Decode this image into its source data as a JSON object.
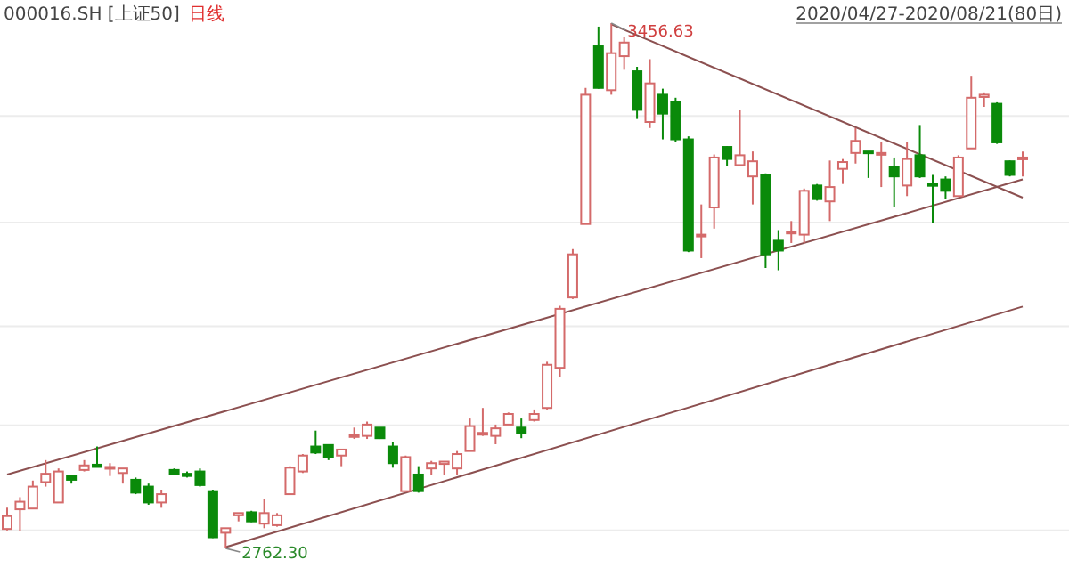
{
  "chart_data": {
    "type": "candlestick",
    "title": "000016.SH [上证50]",
    "subtitle": "日线",
    "annotations": [
      "2020/04/27-2020/08/21(80日)",
      "3456.63",
      "2762.30"
    ],
    "categories": [
      null,
      null,
      null,
      null,
      null,
      null,
      null,
      null,
      null,
      null,
      null,
      null,
      null,
      null,
      null,
      null,
      null,
      null,
      null,
      null,
      null,
      null,
      null,
      null,
      null,
      null,
      null,
      null,
      null,
      null,
      null,
      null,
      null,
      null,
      null,
      null,
      null,
      null,
      null,
      null,
      null,
      null,
      null,
      null,
      null,
      null,
      null,
      null,
      null,
      null,
      null,
      null,
      null,
      null,
      null,
      null,
      null,
      null,
      null,
      null,
      null,
      null,
      null,
      null,
      null,
      null,
      null,
      null,
      null,
      null,
      null,
      null,
      null,
      null,
      null,
      null,
      null,
      null,
      null,
      null
    ],
    "ohlc": [
      [
        2788,
        2816,
        2786,
        2805
      ],
      [
        2814,
        2830,
        2785,
        2824
      ],
      [
        2815,
        2852,
        2815,
        2844
      ],
      [
        2850,
        2879,
        2844,
        2861
      ],
      [
        2823,
        2868,
        2823,
        2864
      ],
      [
        2858,
        2860,
        2848,
        2853
      ],
      [
        2866,
        2879,
        2864,
        2872
      ],
      [
        2873,
        2897,
        2870,
        2870
      ],
      [
        2868,
        2875,
        2858,
        2870
      ],
      [
        2862,
        2868,
        2848,
        2868
      ],
      [
        2853,
        2856,
        2834,
        2836
      ],
      [
        2844,
        2848,
        2820,
        2823
      ],
      [
        2823,
        2840,
        2816,
        2834
      ],
      [
        2866,
        2868,
        2860,
        2861
      ],
      [
        2861,
        2864,
        2856,
        2858
      ],
      [
        2864,
        2868,
        2844,
        2846
      ],
      [
        2838,
        2840,
        2776,
        2777
      ],
      [
        2783,
        2789,
        2762.3,
        2789
      ],
      [
        2806,
        2809,
        2798,
        2809
      ],
      [
        2810,
        2812,
        2797,
        2798
      ],
      [
        2795,
        2828,
        2789,
        2809
      ],
      [
        2793,
        2809,
        2791,
        2806
      ],
      [
        2834,
        2871,
        2834,
        2869
      ],
      [
        2864,
        2887,
        2862,
        2885
      ],
      [
        2897,
        2918,
        2887,
        2889
      ],
      [
        2899,
        2899,
        2879,
        2883
      ],
      [
        2885,
        2893,
        2871,
        2893
      ],
      [
        2910,
        2922,
        2907,
        2912
      ],
      [
        2911,
        2930,
        2907,
        2926
      ],
      [
        2922,
        2922,
        2907,
        2908
      ],
      [
        2897,
        2903,
        2869,
        2875
      ],
      [
        2838,
        2885,
        2838,
        2883
      ],
      [
        2860,
        2871,
        2836,
        2838
      ],
      [
        2868,
        2878,
        2860,
        2875
      ],
      [
        2874,
        2877,
        2860,
        2877
      ],
      [
        2868,
        2891,
        2860,
        2887
      ],
      [
        2891,
        2934,
        2891,
        2924
      ],
      [
        2913,
        2948,
        2911,
        2915
      ],
      [
        2911,
        2926,
        2900,
        2921
      ],
      [
        2926,
        2942,
        2926,
        2940
      ],
      [
        2922,
        2934,
        2908,
        2915
      ],
      [
        2932,
        2946,
        2930,
        2940
      ],
      [
        2948,
        3009,
        2946,
        3005
      ],
      [
        3001,
        3083,
        2989,
        3079
      ],
      [
        3094,
        3158,
        3092,
        3151
      ],
      [
        3191,
        3371,
        3191,
        3362
      ],
      [
        3426,
        3452,
        3370,
        3371
      ],
      [
        3368,
        3456.63,
        3362,
        3417
      ],
      [
        3413,
        3439,
        3395,
        3431
      ],
      [
        3393,
        3399,
        3330,
        3342
      ],
      [
        3326,
        3409,
        3318,
        3377
      ],
      [
        3362,
        3370,
        3303,
        3337
      ],
      [
        3352,
        3358,
        3299,
        3303
      ],
      [
        3303,
        3307,
        3154,
        3156
      ],
      [
        3175,
        3217,
        3146,
        3177
      ],
      [
        3213,
        3283,
        3185,
        3279
      ],
      [
        3293,
        3294,
        3268,
        3277
      ],
      [
        3269,
        3342,
        3268,
        3282
      ],
      [
        3254,
        3287,
        3217,
        3274
      ],
      [
        3256,
        3258,
        3133,
        3151
      ],
      [
        3169,
        3183,
        3130,
        3156
      ],
      [
        3179,
        3195,
        3166,
        3181
      ],
      [
        3177,
        3238,
        3166,
        3235
      ],
      [
        3242,
        3244,
        3222,
        3224
      ],
      [
        3221,
        3275,
        3195,
        3240
      ],
      [
        3264,
        3277,
        3244,
        3273
      ],
      [
        3285,
        3318,
        3271,
        3301
      ],
      [
        3287,
        3287,
        3252,
        3285
      ],
      [
        3283,
        3299,
        3240,
        3285
      ],
      [
        3266,
        3279,
        3213,
        3254
      ],
      [
        3242,
        3299,
        3228,
        3277
      ],
      [
        3282,
        3322,
        3252,
        3254
      ],
      [
        3244,
        3256,
        3193,
        3242
      ],
      [
        3250,
        3254,
        3224,
        3235
      ],
      [
        3228,
        3282,
        3227,
        3279
      ],
      [
        3291,
        3387,
        3291,
        3358
      ],
      [
        3359,
        3365,
        3346,
        3362
      ],
      [
        3350,
        3352,
        3297,
        3299
      ],
      [
        3274,
        3275,
        3254,
        3256
      ],
      [
        3278,
        3287,
        3254,
        3279
      ]
    ],
    "colors": [
      "#d46a6a",
      "#d46a6a",
      "#d46a6a",
      "#d46a6a",
      "#d46a6a",
      "#0a8a0a",
      "#d46a6a",
      "#0a8a0a",
      "#d46a6a",
      "#d46a6a",
      "#0a8a0a",
      "#0a8a0a",
      "#d46a6a",
      "#0a8a0a",
      "#0a8a0a",
      "#0a8a0a",
      "#0a8a0a",
      "#d46a6a",
      "#d46a6a",
      "#0a8a0a",
      "#d46a6a",
      "#d46a6a",
      "#d46a6a",
      "#d46a6a",
      "#0a8a0a",
      "#0a8a0a",
      "#d46a6a",
      "#d46a6a",
      "#d46a6a",
      "#0a8a0a",
      "#0a8a0a",
      "#d46a6a",
      "#0a8a0a",
      "#d46a6a",
      "#d46a6a",
      "#d46a6a",
      "#d46a6a",
      "#d46a6a",
      "#d46a6a",
      "#d46a6a",
      "#0a8a0a",
      "#d46a6a",
      "#d46a6a",
      "#d46a6a",
      "#d46a6a",
      "#d46a6a",
      "#0a8a0a",
      "#d46a6a",
      "#d46a6a",
      "#0a8a0a",
      "#d46a6a",
      "#0a8a0a",
      "#0a8a0a",
      "#0a8a0a",
      "#d46a6a",
      "#d46a6a",
      "#0a8a0a",
      "#d46a6a",
      "#d46a6a",
      "#0a8a0a",
      "#0a8a0a",
      "#d46a6a",
      "#d46a6a",
      "#0a8a0a",
      "#d46a6a",
      "#d46a6a",
      "#d46a6a",
      "#0a8a0a",
      "#d46a6a",
      "#0a8a0a",
      "#d46a6a",
      "#0a8a0a",
      "#0a8a0a",
      "#0a8a0a",
      "#d46a6a",
      "#d46a6a",
      "#d46a6a",
      "#0a8a0a",
      "#0a8a0a",
      "#d46a6a"
    ],
    "series": [
      {
        "type": "line",
        "color": "#8c5050",
        "values": [
          2860,
          null,
          null,
          null,
          null,
          null,
          null,
          null,
          null,
          null,
          null,
          null,
          null,
          null,
          null,
          null,
          null,
          null,
          null,
          null,
          null,
          null,
          null,
          null,
          null,
          null,
          null,
          null,
          null,
          null,
          null,
          null,
          null,
          null,
          null,
          null,
          null,
          null,
          null,
          null,
          null,
          null,
          null,
          null,
          null,
          null,
          null,
          null,
          null,
          null,
          null,
          null,
          null,
          null,
          null,
          null,
          null,
          null,
          null,
          null,
          null,
          null,
          null,
          null,
          null,
          null,
          null,
          null,
          null,
          null,
          null,
          null,
          null,
          null,
          null,
          null,
          null,
          null,
          null,
          3250
        ]
      },
      {
        "type": "line",
        "color": "#8c5050",
        "values": [
          null,
          null,
          null,
          null,
          null,
          null,
          null,
          null,
          null,
          null,
          null,
          null,
          null,
          null,
          null,
          null,
          null,
          2764,
          null,
          null,
          null,
          null,
          null,
          null,
          null,
          null,
          null,
          null,
          null,
          null,
          null,
          null,
          null,
          null,
          null,
          null,
          null,
          null,
          null,
          null,
          null,
          null,
          null,
          null,
          null,
          null,
          null,
          null,
          null,
          null,
          null,
          null,
          null,
          null,
          null,
          null,
          null,
          null,
          null,
          null,
          null,
          null,
          null,
          null,
          null,
          null,
          null,
          null,
          null,
          null,
          null,
          null,
          null,
          null,
          null,
          null,
          null,
          null,
          null,
          3082
        ]
      },
      {
        "type": "line",
        "color": "#8c5050",
        "values": [
          null,
          null,
          null,
          null,
          null,
          null,
          null,
          null,
          null,
          null,
          null,
          null,
          null,
          null,
          null,
          null,
          null,
          null,
          null,
          null,
          null,
          null,
          null,
          null,
          null,
          null,
          null,
          null,
          null,
          null,
          null,
          null,
          null,
          null,
          null,
          null,
          null,
          null,
          null,
          null,
          null,
          null,
          null,
          null,
          null,
          null,
          null,
          3455,
          null,
          null,
          null,
          null,
          null,
          null,
          null,
          null,
          null,
          null,
          null,
          null,
          null,
          null,
          null,
          null,
          null,
          null,
          null,
          null,
          null,
          null,
          null,
          null,
          null,
          null,
          null,
          null,
          null,
          null,
          null,
          3226
        ]
      }
    ],
    "yticks": [
      {
        "value": 3334,
        "label": null
      },
      {
        "value": 3193,
        "label": null
      },
      {
        "value": 3056,
        "label": null
      },
      {
        "value": 2925,
        "label": null
      },
      {
        "value": 2786,
        "label": null
      }
    ],
    "grid": "y"
  }
}
